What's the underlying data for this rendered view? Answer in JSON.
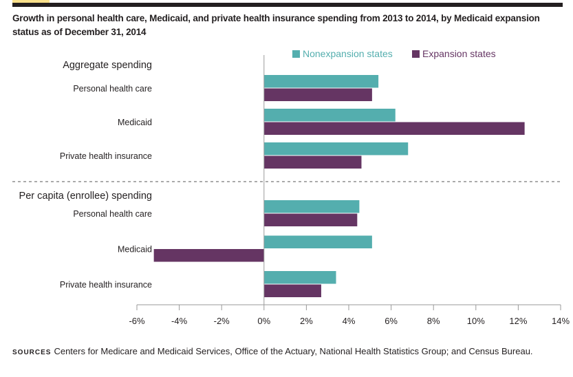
{
  "title": "Growth in personal health care, Medicaid, and private health insurance spending from 2013 to 2014, by Medicaid expansion status as of December 31, 2014",
  "sources_label": "SOURCES",
  "sources_text": "Centers for Medicare and Medicaid Services, Office of the Actuary, National Health Statistics Group; and Census Bureau.",
  "colors": {
    "nonexpansion": "#54aeae",
    "expansion": "#653563"
  },
  "chart_data": {
    "type": "bar",
    "orientation": "horizontal",
    "xlim": [
      -6,
      14
    ],
    "ticks": [
      "-6%",
      "-4%",
      "-2%",
      "0%",
      "2%",
      "4%",
      "6%",
      "8%",
      "10%",
      "12%",
      "14%"
    ],
    "tick_values": [
      -6,
      -4,
      -2,
      0,
      2,
      4,
      6,
      8,
      10,
      12,
      14
    ],
    "legend": [
      "Nonexpansion states",
      "Expansion states"
    ],
    "groups": [
      {
        "label": "Aggregate spending",
        "categories": [
          "Personal health care",
          "Medicaid",
          "Private health insurance"
        ],
        "series": [
          {
            "name": "Nonexpansion states",
            "values": [
              5.4,
              6.2,
              6.8
            ]
          },
          {
            "name": "Expansion states",
            "values": [
              5.1,
              12.3,
              4.6
            ]
          }
        ]
      },
      {
        "label": "Per capita (enrollee) spending",
        "categories": [
          "Personal health care",
          "Medicaid",
          "Private health insurance"
        ],
        "series": [
          {
            "name": "Nonexpansion states",
            "values": [
              4.5,
              5.1,
              3.4
            ]
          },
          {
            "name": "Expansion states",
            "values": [
              4.4,
              -5.2,
              2.7
            ]
          }
        ]
      }
    ]
  }
}
